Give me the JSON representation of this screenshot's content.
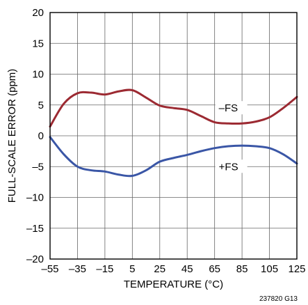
{
  "chart_data": {
    "type": "line",
    "xlabel": "TEMPERATURE (°C)",
    "ylabel": "FULL-SCALE ERROR (ppm)",
    "xlim": [
      -55,
      125
    ],
    "ylim": [
      -20,
      20
    ],
    "x_ticks": [
      -55,
      -35,
      -15,
      5,
      25,
      45,
      65,
      85,
      105,
      125
    ],
    "y_ticks": [
      -20,
      -15,
      -10,
      -5,
      0,
      5,
      10,
      15,
      20
    ],
    "x_tick_labels": [
      "–55",
      "–35",
      "–15",
      "5",
      "25",
      "45",
      "65",
      "85",
      "105",
      "125"
    ],
    "y_tick_labels": [
      "–20",
      "–15",
      "–10",
      "–5",
      "0",
      "5",
      "10",
      "15",
      "20"
    ],
    "grid": true,
    "series": [
      {
        "name": "–FS",
        "color": "#9c2a32",
        "x": [
          -55,
          -45,
          -35,
          -25,
          -15,
          -5,
          5,
          15,
          25,
          35,
          45,
          55,
          65,
          75,
          85,
          95,
          105,
          115,
          125
        ],
        "values": [
          1.5,
          5.2,
          6.9,
          7.0,
          6.7,
          7.2,
          7.4,
          6.2,
          4.9,
          4.5,
          4.2,
          3.2,
          2.2,
          2.0,
          2.0,
          2.3,
          3.0,
          4.5,
          6.3
        ]
      },
      {
        "name": "+FS",
        "color": "#3a56a6",
        "x": [
          -55,
          -45,
          -35,
          -25,
          -15,
          -5,
          5,
          15,
          25,
          35,
          45,
          55,
          65,
          75,
          85,
          95,
          105,
          115,
          125
        ],
        "values": [
          -0.2,
          -3.0,
          -5.0,
          -5.6,
          -5.8,
          -6.3,
          -6.5,
          -5.6,
          -4.2,
          -3.6,
          -3.1,
          -2.5,
          -2.0,
          -1.7,
          -1.6,
          -1.7,
          -2.0,
          -3.0,
          -4.5
        ]
      }
    ],
    "annotations": [
      "–FS",
      "+FS"
    ],
    "figure_id": "237820 G13"
  }
}
